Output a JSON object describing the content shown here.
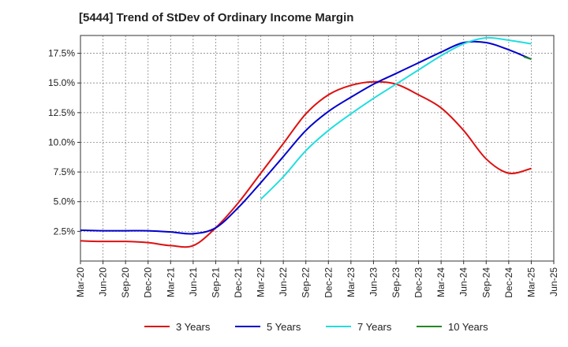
{
  "chart_data": {
    "type": "line",
    "title": "[5444]  Trend of StDev of Ordinary Income Margin",
    "xlabel": "",
    "ylabel": "",
    "x_tick_labels": [
      "Mar-20",
      "Jun-20",
      "Sep-20",
      "Dec-20",
      "Mar-21",
      "Jun-21",
      "Sep-21",
      "Dec-21",
      "Mar-22",
      "Jun-22",
      "Sep-22",
      "Dec-22",
      "Mar-23",
      "Jun-23",
      "Sep-23",
      "Dec-23",
      "Mar-24",
      "Jun-24",
      "Sep-24",
      "Dec-24",
      "Mar-25",
      "Jun-25"
    ],
    "y_ticks": [
      2.5,
      5.0,
      7.5,
      10.0,
      12.5,
      15.0,
      17.5
    ],
    "y_tick_labels": [
      "2.5%",
      "5.0%",
      "7.5%",
      "10.0%",
      "12.5%",
      "15.0%",
      "17.5%"
    ],
    "ylim": [
      0.0,
      19.0
    ],
    "grid": true,
    "legend_position": "bottom",
    "series": [
      {
        "name": "3 Years",
        "color": "#dd1111",
        "x": [
          "Mar-20",
          "Jun-20",
          "Sep-20",
          "Dec-20",
          "Mar-21",
          "Jun-21",
          "Sep-21",
          "Dec-21",
          "Mar-22",
          "Jun-22",
          "Sep-22",
          "Dec-22",
          "Mar-23",
          "Jun-23",
          "Sep-23",
          "Dec-23",
          "Mar-24",
          "Jun-24",
          "Sep-24",
          "Dec-24",
          "Mar-25"
        ],
        "values": [
          1.7,
          1.65,
          1.65,
          1.55,
          1.3,
          1.3,
          2.8,
          4.9,
          7.4,
          9.9,
          12.4,
          14.0,
          14.8,
          15.1,
          14.9,
          14.0,
          12.9,
          11.0,
          8.6,
          7.4,
          7.8
        ]
      },
      {
        "name": "5 Years",
        "color": "#0000cc",
        "x": [
          "Mar-20",
          "Jun-20",
          "Sep-20",
          "Dec-20",
          "Mar-21",
          "Jun-21",
          "Sep-21",
          "Dec-21",
          "Mar-22",
          "Jun-22",
          "Sep-22",
          "Dec-22",
          "Mar-23",
          "Jun-23",
          "Sep-23",
          "Dec-23",
          "Mar-24",
          "Jun-24",
          "Sep-24",
          "Dec-24",
          "Mar-25"
        ],
        "values": [
          2.6,
          2.55,
          2.55,
          2.55,
          2.45,
          2.3,
          2.8,
          4.5,
          6.6,
          8.8,
          11.0,
          12.6,
          13.8,
          14.9,
          15.8,
          16.7,
          17.6,
          18.4,
          18.4,
          17.8,
          17.0
        ]
      },
      {
        "name": "7 Years",
        "color": "#22dddd",
        "x": [
          "Mar-22",
          "Jun-22",
          "Sep-22",
          "Dec-22",
          "Mar-23",
          "Jun-23",
          "Sep-23",
          "Dec-23",
          "Mar-24",
          "Jun-24",
          "Sep-24",
          "Dec-24",
          "Mar-25"
        ],
        "values": [
          5.2,
          7.1,
          9.3,
          11.0,
          12.4,
          13.7,
          14.9,
          16.1,
          17.3,
          18.3,
          18.8,
          18.6,
          18.3
        ]
      },
      {
        "name": "10 Years",
        "color": "#228822",
        "x": [
          "Feb-25",
          "Mar-25"
        ],
        "values": [
          17.2,
          17.0
        ]
      }
    ]
  }
}
